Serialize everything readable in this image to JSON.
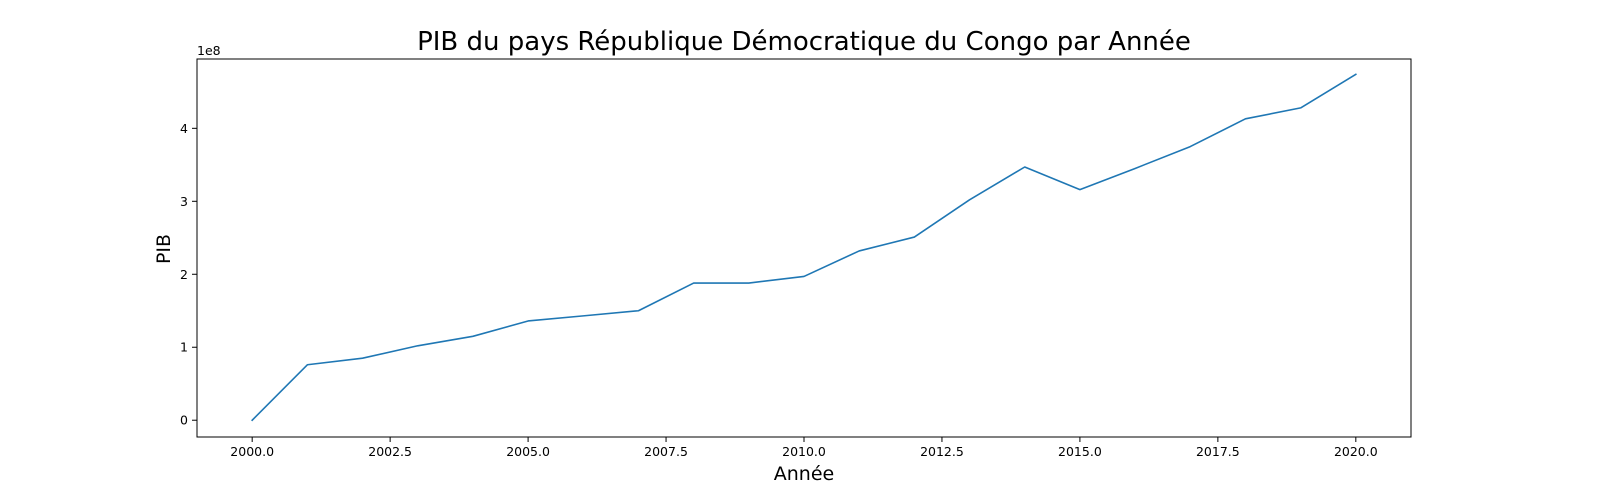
{
  "chart_data": {
    "type": "line",
    "title": "PIB du pays République Démocratique du Congo par Année",
    "xlabel": "Année",
    "ylabel": "PIB",
    "y_offset_label": "1e8",
    "xlim": [
      1999.0,
      2021.0
    ],
    "ylim": [
      -23000000.0,
      495000000.0
    ],
    "x_ticks": [
      2000.0,
      2002.5,
      2005.0,
      2007.5,
      2010.0,
      2012.5,
      2015.0,
      2017.5,
      2020.0
    ],
    "x_tick_labels": [
      "2000.0",
      "2002.5",
      "2005.0",
      "2007.5",
      "2010.0",
      "2012.5",
      "2015.0",
      "2017.5",
      "2020.0"
    ],
    "y_ticks": [
      0,
      100000000,
      200000000,
      300000000,
      400000000
    ],
    "y_tick_labels": [
      "0",
      "1",
      "2",
      "3",
      "4"
    ],
    "grid": false,
    "line_color": "#1f77b4",
    "series": [
      {
        "x": [
          2000,
          2001,
          2002,
          2003,
          2004,
          2005,
          2006,
          2007,
          2008,
          2009,
          2010,
          2011,
          2012,
          2013,
          2014,
          2015,
          2016,
          2017,
          2018,
          2019,
          2020
        ],
        "values": [
          0,
          76000000,
          85000000,
          102000000,
          115000000,
          136000000,
          143000000,
          150000000,
          188000000,
          188000000,
          197000000,
          232000000,
          251000000,
          302000000,
          347000000,
          316000000,
          345000000,
          375000000,
          413000000,
          428000000,
          474000000
        ]
      }
    ]
  }
}
